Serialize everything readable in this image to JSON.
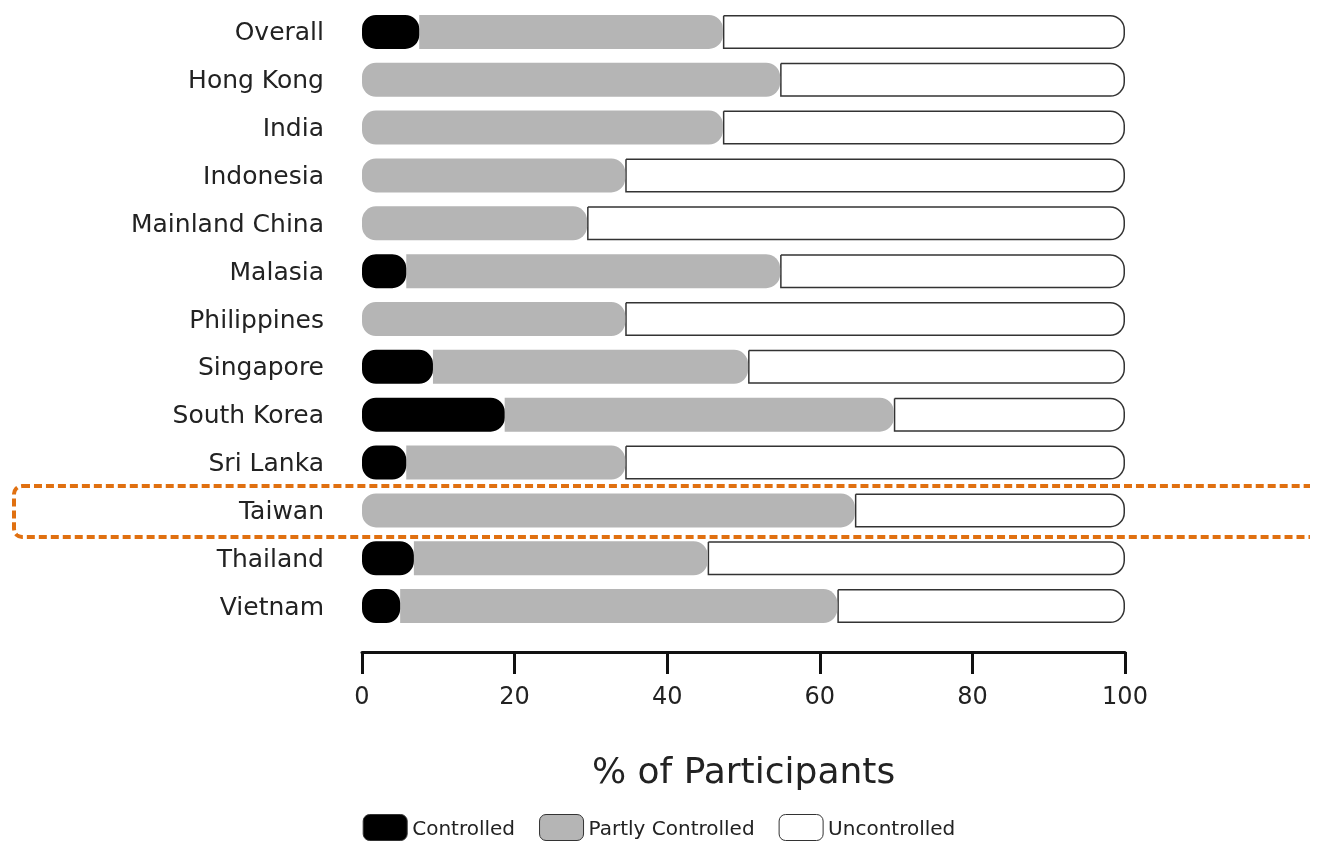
{
  "chart_data": {
    "type": "bar",
    "orientation": "horizontal",
    "stacked": true,
    "categories": [
      "Overall",
      "Hong Kong",
      "India",
      "Indonesia",
      "Mainland China",
      "Malasia",
      "Philippines",
      "Singapore",
      "South Korea",
      "Sri Lanka",
      "Taiwan",
      "Thailand",
      "Vietnam"
    ],
    "series": [
      {
        "name": "Controlled",
        "color": "#000000",
        "values": [
          7.5,
          0,
          0,
          0,
          0,
          5.8,
          0,
          9.3,
          18.7,
          5.8,
          0,
          6.8,
          5.0
        ]
      },
      {
        "name": "Partly Controlled",
        "color": "#b5b5b5",
        "values": [
          39.8,
          54.8,
          47.3,
          34.5,
          29.5,
          49.0,
          34.5,
          41.3,
          51.0,
          28.7,
          64.6,
          38.5,
          57.3
        ]
      },
      {
        "name": "Uncontrolled",
        "color": "#ffffff",
        "values": [
          52.7,
          45.2,
          52.7,
          65.5,
          70.5,
          45.2,
          65.5,
          49.4,
          30.3,
          65.5,
          35.4,
          54.7,
          37.7
        ]
      }
    ],
    "xlim": [
      0,
      100
    ],
    "xticks": [
      0,
      20,
      40,
      60,
      80,
      100
    ],
    "xlabel": "% of Participants",
    "grid": false,
    "legend": "bottom"
  }
}
